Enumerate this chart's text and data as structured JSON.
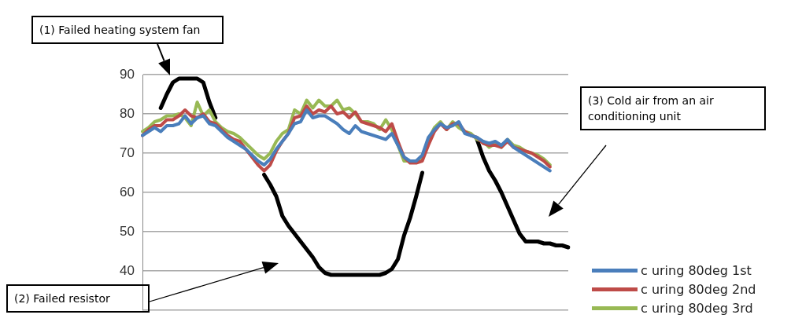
{
  "chart_data": {
    "type": "line",
    "categories": [
      null,
      null,
      null,
      null,
      null,
      null,
      null,
      null,
      null,
      null,
      null,
      null,
      null,
      null,
      null,
      null,
      null,
      null,
      null,
      null,
      null,
      null,
      null,
      null,
      null,
      null,
      null,
      null,
      null,
      null,
      null,
      null,
      null,
      null,
      null,
      null,
      null,
      null,
      null,
      null,
      null,
      null,
      null,
      null,
      null,
      null,
      null,
      null,
      null,
      null,
      null,
      null,
      null,
      null,
      null,
      null,
      null,
      null,
      null,
      null,
      null,
      null,
      null,
      null,
      null,
      null,
      null,
      null,
      null,
      null,
      null
    ],
    "series": [
      {
        "name": "c uring 80deg 1st",
        "color": "#4a7ebb",
        "values": [
          74.5,
          75.5,
          76.5,
          75.5,
          77,
          77,
          77.5,
          79.5,
          77.5,
          79,
          79.5,
          77.5,
          77,
          75.5,
          74,
          73,
          72,
          71,
          69.5,
          68,
          67,
          68.5,
          71,
          73,
          75,
          77.5,
          78,
          81,
          79,
          79.5,
          79.5,
          78.5,
          77.5,
          76,
          75,
          77,
          75.5,
          75,
          74.5,
          74,
          73.5,
          75,
          72,
          69,
          68,
          68,
          69.5,
          74,
          76,
          77.5,
          76.5,
          77,
          78,
          75,
          74.5,
          74,
          73,
          72.5,
          73,
          72,
          73.5,
          71.5,
          70.5,
          69.5,
          68.5,
          67.5,
          66.5,
          65.5,
          null,
          null,
          null
        ]
      },
      {
        "name": "c uring 80deg 2nd",
        "color": "#be4b48",
        "values": [
          74.5,
          76,
          77,
          77,
          78.5,
          78.5,
          79.5,
          81,
          79.5,
          79,
          80,
          78,
          77.5,
          76,
          74.5,
          73.5,
          73,
          71,
          69,
          67,
          65.5,
          67,
          70.5,
          73,
          75,
          79,
          79.5,
          82,
          80,
          81,
          80.5,
          82,
          80,
          80.5,
          79,
          80.5,
          78,
          77.5,
          77,
          76.5,
          75.5,
          77.5,
          73,
          69,
          67.5,
          67.5,
          68,
          72,
          75.5,
          77.5,
          76,
          77.5,
          77.5,
          75.5,
          74.5,
          74,
          72.5,
          72,
          72,
          71.5,
          73,
          71.5,
          71,
          70.5,
          70,
          69,
          68,
          66.5,
          null,
          null,
          null
        ]
      },
      {
        "name": "c uring 80deg 3rd",
        "color": "#98b954",
        "values": [
          75.5,
          76.5,
          78,
          78.5,
          79.5,
          79.5,
          80,
          79,
          77,
          83,
          79.5,
          81,
          78,
          76.5,
          75.5,
          75,
          74,
          72.5,
          71,
          69.5,
          68.5,
          70,
          73,
          75,
          76,
          81,
          80,
          83.5,
          81.5,
          83.5,
          82,
          82,
          83.5,
          81,
          81.5,
          80,
          78,
          78,
          77.5,
          76,
          78.5,
          76,
          72,
          68,
          68,
          68,
          69,
          73.5,
          76.5,
          78,
          76,
          78,
          76.5,
          75.5,
          75,
          73.5,
          73,
          71.5,
          72.5,
          71.5,
          73.5,
          72,
          71.5,
          70.5,
          70,
          69.5,
          68.5,
          67,
          null,
          null,
          null
        ]
      },
      {
        "color": "#000000",
        "values": [
          null,
          null,
          null,
          81.5,
          85,
          88,
          89,
          89,
          89,
          89,
          88,
          83,
          79,
          null,
          null,
          null,
          null,
          null,
          null,
          null,
          64.5,
          62,
          59,
          54,
          51.5,
          49.5,
          47.5,
          45.5,
          43.5,
          41,
          39.5,
          39,
          39,
          39,
          39,
          39,
          39,
          39,
          39,
          39,
          39.5,
          40.5,
          43,
          49,
          53.5,
          59,
          65,
          null,
          null,
          null,
          null,
          null,
          null,
          null,
          null,
          73.5,
          69,
          65.5,
          63,
          60,
          56.5,
          53,
          49.5,
          47.5,
          47.5,
          47.5,
          47,
          47,
          46.5,
          46.5,
          46
        ]
      }
    ],
    "ylim": [
      30,
      90
    ],
    "yticks": [
      {
        "value": 30,
        "label": null
      },
      40,
      50,
      60,
      70,
      80,
      90
    ],
    "grid": "y",
    "legend": "right",
    "marker": "none",
    "line_style": "solid",
    "tick_labels": "y",
    "annotations": [
      "(1) Failed heating system fan",
      "(2) Failed resistor",
      "(3) Cold air from an air conditioning unit"
    ]
  }
}
